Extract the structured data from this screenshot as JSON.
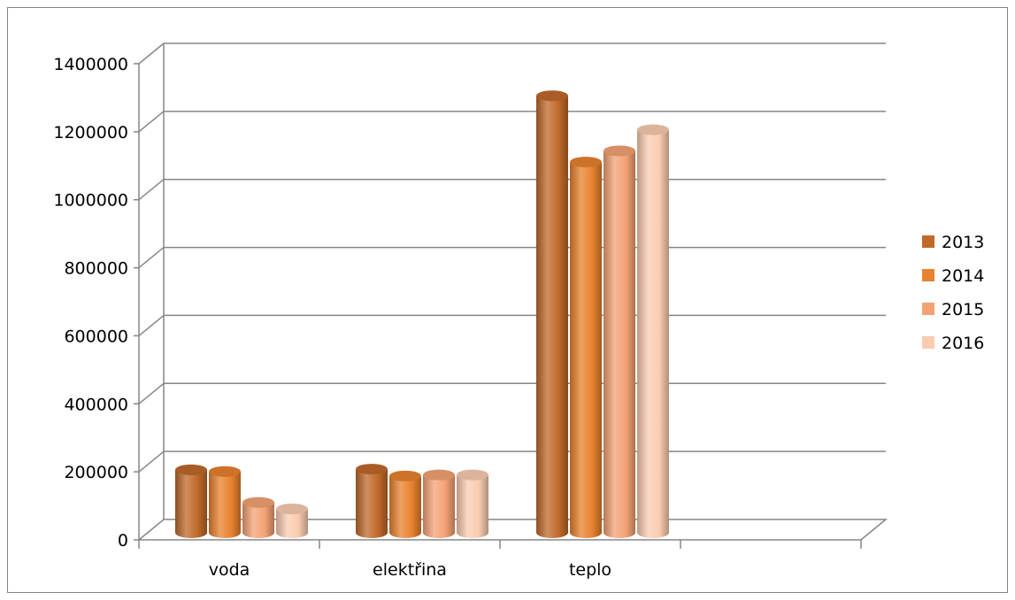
{
  "chart_data": {
    "type": "bar",
    "style": "3d-cylinder",
    "title": "",
    "xlabel": "",
    "ylabel": "",
    "categories": [
      "voda",
      "elektřina",
      "teplo",
      ""
    ],
    "series": [
      {
        "name": "2013",
        "values": [
          185000,
          187000,
          1285000,
          null
        ],
        "color": "#C0692A"
      },
      {
        "name": "2014",
        "values": [
          180000,
          167000,
          1090000,
          null
        ],
        "color": "#E9822F"
      },
      {
        "name": "2015",
        "values": [
          89000,
          170000,
          1123000,
          null
        ],
        "color": "#F4A274"
      },
      {
        "name": "2016",
        "values": [
          70000,
          170000,
          1185000,
          null
        ],
        "color": "#F9CCB0"
      }
    ],
    "ylim": [
      0,
      1400000
    ],
    "yticks": [
      "0",
      "200000",
      "400000",
      "600000",
      "800000",
      "1000000",
      "1200000",
      "1400000"
    ],
    "ytick_values": [
      0,
      200000,
      400000,
      600000,
      800000,
      1000000,
      1200000,
      1400000
    ],
    "grid": true,
    "legend_position": "right"
  }
}
